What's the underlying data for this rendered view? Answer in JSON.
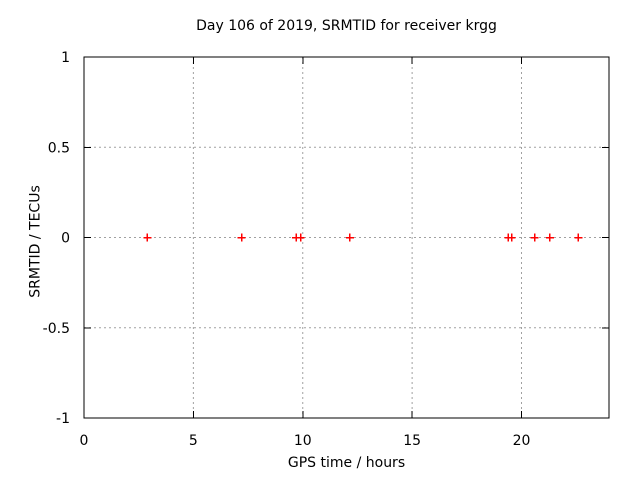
{
  "chart_data": {
    "type": "scatter",
    "title": "Day 106 of 2019, SRMTID for receiver krgg",
    "xlabel": "GPS time / hours",
    "ylabel": "SRMTID / TECUs",
    "xlim": [
      0,
      24
    ],
    "ylim": [
      -1,
      1
    ],
    "xticks": [
      0,
      5,
      10,
      15,
      20
    ],
    "xtick_labels": [
      "0",
      "5",
      "10",
      "15",
      "20"
    ],
    "yticks": [
      -1,
      -0.5,
      0,
      0.5,
      1
    ],
    "ytick_labels": [
      "-1",
      "-0.5",
      "0",
      "0.5",
      "1"
    ],
    "grid": true,
    "legend": "none",
    "series": [
      {
        "name": "",
        "marker": "plus",
        "color": "#ff0000",
        "points": [
          [
            2.9,
            0
          ],
          [
            7.2,
            0
          ],
          [
            9.7,
            0
          ],
          [
            9.9,
            0
          ],
          [
            12.15,
            0
          ],
          [
            19.4,
            0
          ],
          [
            19.55,
            0
          ],
          [
            20.6,
            0
          ],
          [
            21.3,
            0
          ],
          [
            22.6,
            0
          ]
        ]
      }
    ],
    "colors": {
      "background": "#ffffff",
      "border": "#000000",
      "grid": "#a0a0a0",
      "text": "#000000"
    }
  }
}
